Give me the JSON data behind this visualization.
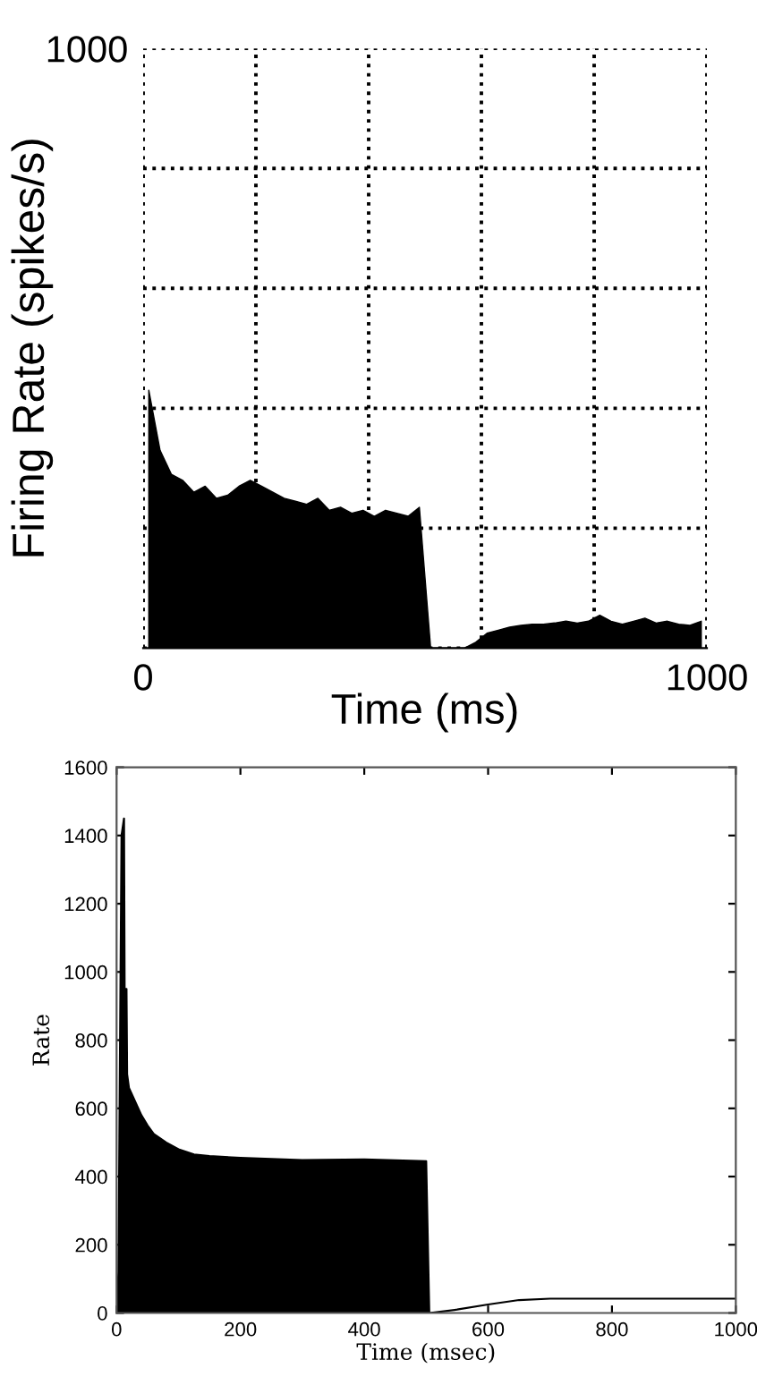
{
  "chart_data": [
    {
      "type": "area",
      "xlabel": "Time (ms)",
      "ylabel": "Firing Rate (spikes/s)",
      "color": "#000000",
      "x": [
        10,
        30,
        50,
        70,
        90,
        110,
        130,
        150,
        170,
        190,
        210,
        230,
        250,
        270,
        290,
        310,
        330,
        350,
        370,
        390,
        410,
        430,
        450,
        470,
        490,
        510,
        530,
        550,
        570,
        590,
        610,
        630,
        650,
        670,
        690,
        710,
        730,
        750,
        770,
        790,
        810,
        830,
        850,
        870,
        890,
        910,
        930,
        950,
        970,
        990
      ],
      "values": [
        430,
        330,
        290,
        280,
        260,
        270,
        250,
        255,
        270,
        280,
        270,
        260,
        250,
        245,
        240,
        250,
        230,
        235,
        225,
        230,
        220,
        230,
        225,
        220,
        235,
        0,
        0,
        0,
        0,
        10,
        25,
        30,
        35,
        38,
        40,
        40,
        42,
        45,
        42,
        45,
        55,
        45,
        40,
        45,
        50,
        42,
        45,
        40,
        38,
        45
      ],
      "xlim": [
        0,
        1000
      ],
      "ylim": [
        0,
        1000
      ],
      "xticks": [
        0,
        {
          "value": 200,
          "label": null
        },
        {
          "value": 400,
          "label": null
        },
        {
          "value": 600,
          "label": null
        },
        {
          "value": 800,
          "label": null
        },
        1000
      ],
      "yticks": [
        {
          "value": 0,
          "label": null
        },
        {
          "value": 200,
          "label": null
        },
        {
          "value": 400,
          "label": null
        },
        {
          "value": 600,
          "label": null
        },
        {
          "value": 800,
          "label": null
        },
        1000
      ],
      "grid": true,
      "line_style": "dotted"
    },
    {
      "type": "line",
      "xlabel": "Time (msec)",
      "ylabel": "Rate",
      "series": [
        {
          "type": "area",
          "color": "#000000",
          "x": [
            0,
            3,
            8,
            12,
            13,
            16,
            17,
            20,
            30,
            40,
            50,
            60,
            80,
            100,
            125,
            150,
            200,
            300,
            400,
            500,
            505
          ],
          "values": [
            0,
            120,
            1400,
            1450,
            950,
            950,
            700,
            660,
            620,
            580,
            550,
            525,
            500,
            480,
            465,
            460,
            455,
            448,
            450,
            445,
            0
          ]
        },
        {
          "type": "line",
          "color": "#000000",
          "x": [
            505,
            550,
            600,
            650,
            700,
            800,
            1000
          ],
          "values": [
            0,
            10,
            25,
            38,
            42,
            42,
            42
          ]
        }
      ],
      "xlim": [
        0,
        1000
      ],
      "ylim": [
        0,
        1600
      ],
      "xticks": [
        0,
        200,
        400,
        600,
        800,
        1000
      ],
      "yticks": [
        0,
        200,
        400,
        600,
        800,
        1000,
        1200,
        1400,
        1600
      ]
    }
  ]
}
